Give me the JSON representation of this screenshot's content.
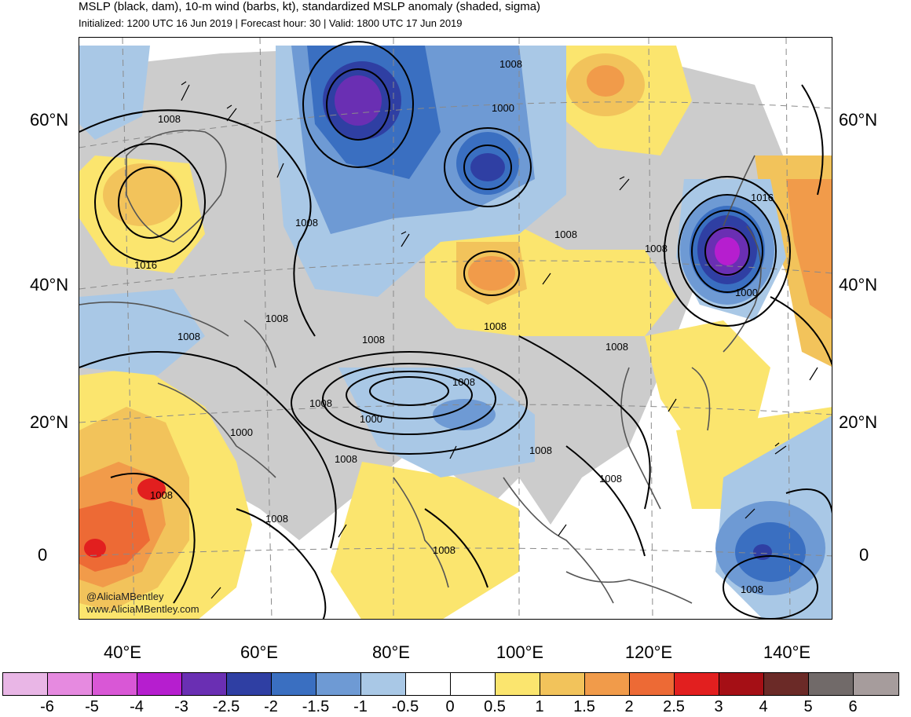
{
  "header": {
    "title": "MSLP (black, dam), 10-m wind (barbs, kt), standardized MSLP anomaly (shaded, sigma)",
    "subtitle": "Initialized: 1200 UTC 16 Jun 2019 | Forecast hour: 30 | Valid: 1800 UTC 17 Jun 2019"
  },
  "map": {
    "lat_labels": [
      "60°N",
      "40°N",
      "20°N",
      "0"
    ],
    "lon_labels": [
      "40°E",
      "60°E",
      "80°E",
      "100°E",
      "120°E",
      "140°E"
    ],
    "isobar_labels": [
      "1008",
      "1000",
      "1008",
      "1016",
      "1008",
      "1008",
      "1008",
      "1008",
      "1016",
      "1008",
      "1008",
      "1000",
      "1008",
      "1008",
      "1000",
      "1008",
      "1008",
      "1008",
      "1008",
      "1000",
      "1008",
      "1008",
      "1008"
    ],
    "credit_handle": "@AliciaMBentley",
    "credit_site": "www.AliciaMBentley.com"
  },
  "colorbar": {
    "labels": [
      "-6",
      "-5",
      "-4",
      "-3",
      "-2.5",
      "-2",
      "-1.5",
      "-1",
      "-0.5",
      "0",
      "0.5",
      "1",
      "1.5",
      "2",
      "2.5",
      "3",
      "4",
      "5",
      "6"
    ],
    "colors": [
      "#e9b6e6",
      "#e68ae0",
      "#d957d6",
      "#b61ecf",
      "#6a2fb3",
      "#2f3fa3",
      "#3a6fc1",
      "#6e9ad4",
      "#a9c8e6",
      "#ffffff",
      "#ffffff",
      "#fbe56e",
      "#f2c35b",
      "#f19b4a",
      "#ed6a35",
      "#e21f1f",
      "#a50f15",
      "#6b2a27",
      "#716a69",
      "#a69c9c"
    ]
  },
  "colors": {
    "land_gray": "#cccccc",
    "coastline": "#555555",
    "isobar": "#000000"
  }
}
